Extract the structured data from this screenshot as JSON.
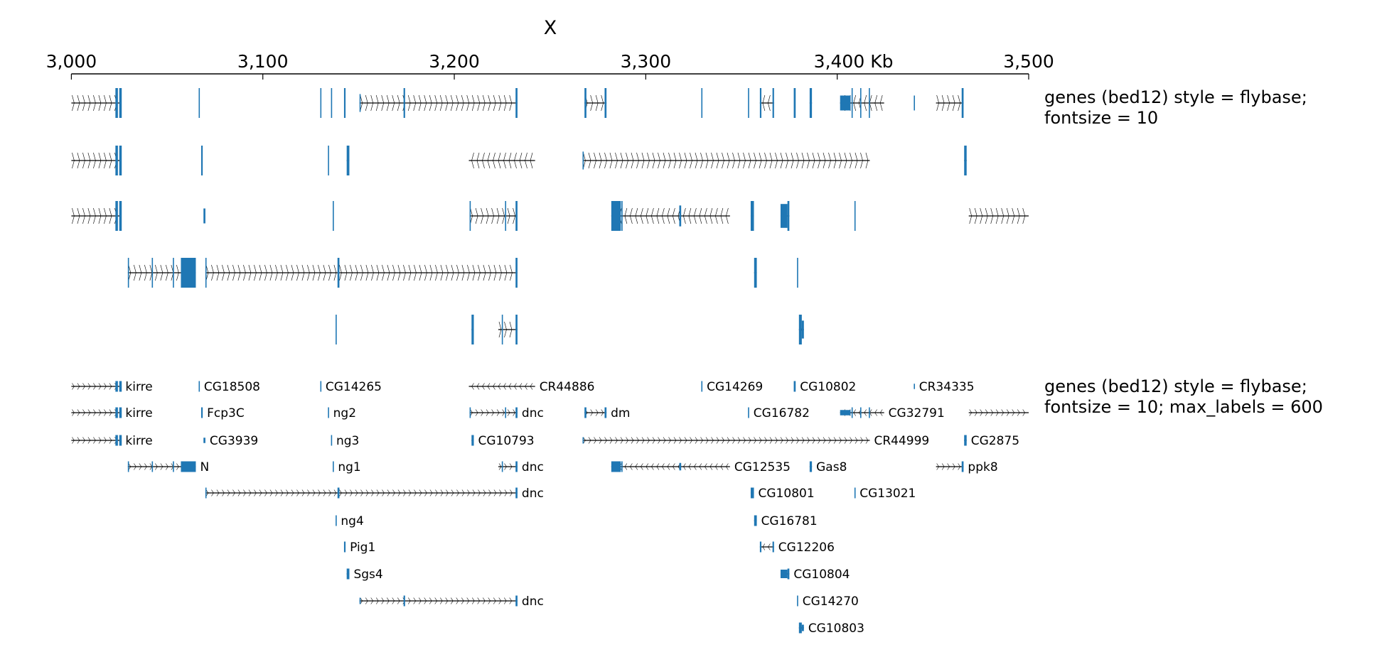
{
  "chart_data": {
    "type": "genome-track",
    "title": "X",
    "xlim": [
      3000,
      3500
    ],
    "x_ticks": [
      "3,000",
      "3,100",
      "3,200",
      "3,300",
      "3,400 Kb",
      "3,500"
    ],
    "x_tick_values": [
      3000,
      3100,
      3200,
      3300,
      3400,
      3500
    ],
    "colors": {
      "exon": "#1f77b4",
      "intron": "#000000"
    },
    "tracks": [
      {
        "title_lines": [
          "genes (bed12) style = flybase;",
          "fontsize = 10"
        ],
        "show_labels": false,
        "rows": [
          [
            "kirre1",
            "CG18508",
            "CG14265",
            "ng3",
            "Pig1",
            "dnc4",
            "dm",
            "CG14269",
            "CG16782",
            "CG12206",
            "CG10802",
            "Gas8",
            "CG32791",
            "CR34335",
            "ppk8"
          ],
          [
            "kirre2",
            "Fcp3C",
            "ng2",
            "Sgs4",
            "CR44886",
            "CR44999",
            "CG2875"
          ],
          [
            "kirre3",
            "CG3939",
            "ng1",
            "dnc1",
            "CG12535",
            "CG10801",
            "CG10804",
            "CG13021",
            "unl1"
          ],
          [
            "N",
            "dnc3",
            "CG16781",
            "CG14270"
          ],
          [
            "ng4",
            "CG10793",
            "dnc2",
            "CG10803"
          ]
        ]
      },
      {
        "title_lines": [
          "genes (bed12) style = flybase;",
          "fontsize = 10; max_labels = 600"
        ],
        "show_labels": true,
        "rows": [
          [
            "kirre1",
            "CG18508",
            "CG14265",
            "CR44886",
            "CG14269",
            "CG10802",
            "CR34335"
          ],
          [
            "kirre2",
            "Fcp3C",
            "ng2",
            "dnc1",
            "dm",
            "CG16782",
            "CG32791",
            "unl1"
          ],
          [
            "kirre3",
            "CG3939",
            "ng3",
            "CG10793",
            "CR44999",
            "CG2875"
          ],
          [
            "N",
            "ng1",
            "dnc2",
            "CG12535",
            "Gas8",
            "ppk8"
          ],
          [
            "dnc3",
            "CG10801",
            "CG13021"
          ],
          [
            "ng4",
            "CG16781"
          ],
          [
            "Pig1",
            "CG12206"
          ],
          [
            "Sgs4",
            "CG10804"
          ],
          [
            "dnc4",
            "CG14270"
          ],
          [
            "CG10803"
          ]
        ]
      }
    ],
    "genes": {
      "kirre1": {
        "name": "kirre",
        "start": 3000,
        "end": 3026,
        "strand": "+",
        "exons": [
          [
            3023,
            3024.3,
            1
          ],
          [
            3025,
            3026.3,
            1
          ]
        ]
      },
      "kirre2": {
        "name": "kirre",
        "start": 3000,
        "end": 3026,
        "strand": "+",
        "exons": [
          [
            3023,
            3024.3,
            1
          ],
          [
            3025,
            3026.3,
            1
          ]
        ]
      },
      "kirre3": {
        "name": "kirre",
        "start": 3000,
        "end": 3026,
        "strand": "+",
        "exons": [
          [
            3023,
            3024.3,
            1
          ],
          [
            3025,
            3026.3,
            1
          ]
        ]
      },
      "CG18508": {
        "name": "CG18508",
        "start": 3066.5,
        "end": 3067,
        "strand": "+",
        "exons": [
          [
            3066.5,
            3067,
            1
          ]
        ]
      },
      "CG14265": {
        "name": "CG14265",
        "start": 3130,
        "end": 3130.5,
        "strand": "+",
        "exons": [
          [
            3130,
            3130.5,
            1
          ]
        ]
      },
      "CR44886": {
        "name": "CR44886",
        "start": 3207.6,
        "end": 3242.2,
        "strand": "-",
        "exons": []
      },
      "CG14269": {
        "name": "CG14269",
        "start": 3329,
        "end": 3329.6,
        "strand": "+",
        "exons": [
          [
            3329,
            3329.6,
            1
          ]
        ]
      },
      "CG10802": {
        "name": "CG10802",
        "start": 3377.3,
        "end": 3378.3,
        "strand": "+",
        "exons": [
          [
            3377.3,
            3378.3,
            1
          ]
        ]
      },
      "CR34335": {
        "name": "CR34335",
        "start": 3440,
        "end": 3440.5,
        "strand": "+",
        "exons": [
          [
            3440,
            3440.5,
            0.5
          ]
        ]
      },
      "Fcp3C": {
        "name": "Fcp3C",
        "start": 3067.8,
        "end": 3068.6,
        "strand": "+",
        "exons": [
          [
            3067.8,
            3068.6,
            1
          ]
        ]
      },
      "ng2": {
        "name": "ng2",
        "start": 3134,
        "end": 3134.5,
        "strand": "+",
        "exons": [
          [
            3134,
            3134.5,
            1
          ]
        ]
      },
      "dnc1": {
        "name": "dnc",
        "start": 3208,
        "end": 3233,
        "strand": "+",
        "exons": [
          [
            3208,
            3208.4,
            1
          ],
          [
            3226.5,
            3227,
            1
          ],
          [
            3232,
            3233,
            1
          ]
        ]
      },
      "dm": {
        "name": "dm",
        "start": 3268,
        "end": 3279.5,
        "strand": "+",
        "exons": [
          [
            3268,
            3269,
            1
          ],
          [
            3278.5,
            3279.5,
            1
          ]
        ]
      },
      "CG16782": {
        "name": "CG16782",
        "start": 3353.4,
        "end": 3354,
        "strand": "+",
        "exons": [
          [
            3353.4,
            3354,
            1
          ]
        ]
      },
      "CG32791": {
        "name": "CG32791",
        "start": 3401.5,
        "end": 3424.5,
        "strand": "-",
        "exons": [
          [
            3401.5,
            3407,
            0.5
          ],
          [
            3407.5,
            3408,
            1
          ],
          [
            3412,
            3412.5,
            1
          ],
          [
            3416.5,
            3417,
            1
          ]
        ]
      },
      "unl1": {
        "name": "",
        "start": 3468.7,
        "end": 3500,
        "strand": "+",
        "exons": []
      },
      "CG3939": {
        "name": "CG3939",
        "start": 3069,
        "end": 3070,
        "strand": "+",
        "exons": [
          [
            3069,
            3070,
            0.5
          ]
        ]
      },
      "ng3": {
        "name": "ng3",
        "start": 3135.6,
        "end": 3136.1,
        "strand": "+",
        "exons": [
          [
            3135.6,
            3136.1,
            1
          ]
        ]
      },
      "CG10793": {
        "name": "CG10793",
        "start": 3209,
        "end": 3210.2,
        "strand": "+",
        "exons": [
          [
            3209,
            3210.2,
            1
          ]
        ]
      },
      "CR44999": {
        "name": "CR44999",
        "start": 3267,
        "end": 3417,
        "strand": "+",
        "exons": [
          [
            3267,
            3267.6,
            0.6
          ]
        ]
      },
      "CG2875": {
        "name": "CG2875",
        "start": 3466.3,
        "end": 3467.6,
        "strand": "+",
        "exons": [
          [
            3466.3,
            3467.6,
            1
          ]
        ]
      },
      "N": {
        "name": "N",
        "start": 3029.5,
        "end": 3065,
        "strand": "+",
        "exons": [
          [
            3029.5,
            3030,
            1
          ],
          [
            3042,
            3042.4,
            1
          ],
          [
            3053,
            3053.4,
            1
          ],
          [
            3057.2,
            3065,
            1
          ]
        ]
      },
      "ng1": {
        "name": "ng1",
        "start": 3136.5,
        "end": 3137,
        "strand": "+",
        "exons": [
          [
            3136.5,
            3137,
            1
          ]
        ]
      },
      "dnc2": {
        "name": "dnc",
        "start": 3223,
        "end": 3233,
        "strand": "+",
        "exons": [
          [
            3224.8,
            3225.2,
            1
          ],
          [
            3232,
            3233,
            1
          ]
        ]
      },
      "CG12535": {
        "name": "CG12535",
        "start": 3282,
        "end": 3344,
        "strand": "-",
        "exons": [
          [
            3282,
            3287,
            1
          ],
          [
            3287.3,
            3287.8,
            1
          ],
          [
            3317.5,
            3318.5,
            0.7
          ]
        ]
      },
      "Gas8": {
        "name": "Gas8",
        "start": 3385.6,
        "end": 3386.8,
        "strand": "+",
        "exons": [
          [
            3385.6,
            3386.8,
            1
          ]
        ]
      },
      "ppk8": {
        "name": "ppk8",
        "start": 3451.6,
        "end": 3466,
        "strand": "+",
        "exons": [
          [
            3465,
            3466,
            1
          ]
        ]
      },
      "dnc3": {
        "name": "dnc",
        "start": 3070,
        "end": 3233,
        "strand": "+",
        "exons": [
          [
            3070,
            3070.5,
            1
          ],
          [
            3139,
            3140,
            1
          ],
          [
            3232,
            3233,
            1
          ]
        ]
      },
      "CG10801": {
        "name": "CG10801",
        "start": 3354.8,
        "end": 3356.5,
        "strand": "+",
        "exons": [
          [
            3354.8,
            3356.5,
            1
          ]
        ]
      },
      "CG13021": {
        "name": "CG13021",
        "start": 3409,
        "end": 3409.5,
        "strand": "+",
        "exons": [
          [
            3409,
            3409.5,
            1
          ]
        ]
      },
      "ng4": {
        "name": "ng4",
        "start": 3138,
        "end": 3138.5,
        "strand": "+",
        "exons": [
          [
            3138,
            3138.5,
            1
          ]
        ]
      },
      "CG16781": {
        "name": "CG16781",
        "start": 3356.6,
        "end": 3358,
        "strand": "+",
        "exons": [
          [
            3356.6,
            3358,
            1
          ]
        ]
      },
      "Pig1": {
        "name": "Pig1",
        "start": 3142.4,
        "end": 3143.2,
        "strand": "+",
        "exons": [
          [
            3142.4,
            3143.2,
            1
          ]
        ]
      },
      "CG12206": {
        "name": "CG12206",
        "start": 3359.6,
        "end": 3367,
        "strand": "-",
        "exons": [
          [
            3359.6,
            3360.4,
            1
          ],
          [
            3366.2,
            3367,
            1
          ]
        ]
      },
      "Sgs4": {
        "name": "Sgs4",
        "start": 3143.8,
        "end": 3145.2,
        "strand": "+",
        "exons": [
          [
            3143.8,
            3145.2,
            1
          ]
        ]
      },
      "CG10804": {
        "name": "CG10804",
        "start": 3370.4,
        "end": 3375,
        "strand": "+",
        "exons": [
          [
            3370.4,
            3374,
            0.8
          ],
          [
            3374,
            3375,
            1
          ]
        ]
      },
      "dnc4": {
        "name": "dnc",
        "start": 3150.5,
        "end": 3233,
        "strand": "+",
        "exons": [
          [
            3150.5,
            3151,
            0.6
          ],
          [
            3173.5,
            3174.3,
            1
          ],
          [
            3232,
            3233,
            1
          ]
        ]
      },
      "CG14270": {
        "name": "CG14270",
        "start": 3379,
        "end": 3379.6,
        "strand": "+",
        "exons": [
          [
            3379,
            3379.6,
            1
          ]
        ]
      },
      "CG10803": {
        "name": "CG10803",
        "start": 3380,
        "end": 3382.6,
        "strand": "+",
        "exons": [
          [
            3380,
            3381.5,
            1
          ],
          [
            3381.5,
            3382.6,
            0.6
          ]
        ]
      }
    }
  }
}
